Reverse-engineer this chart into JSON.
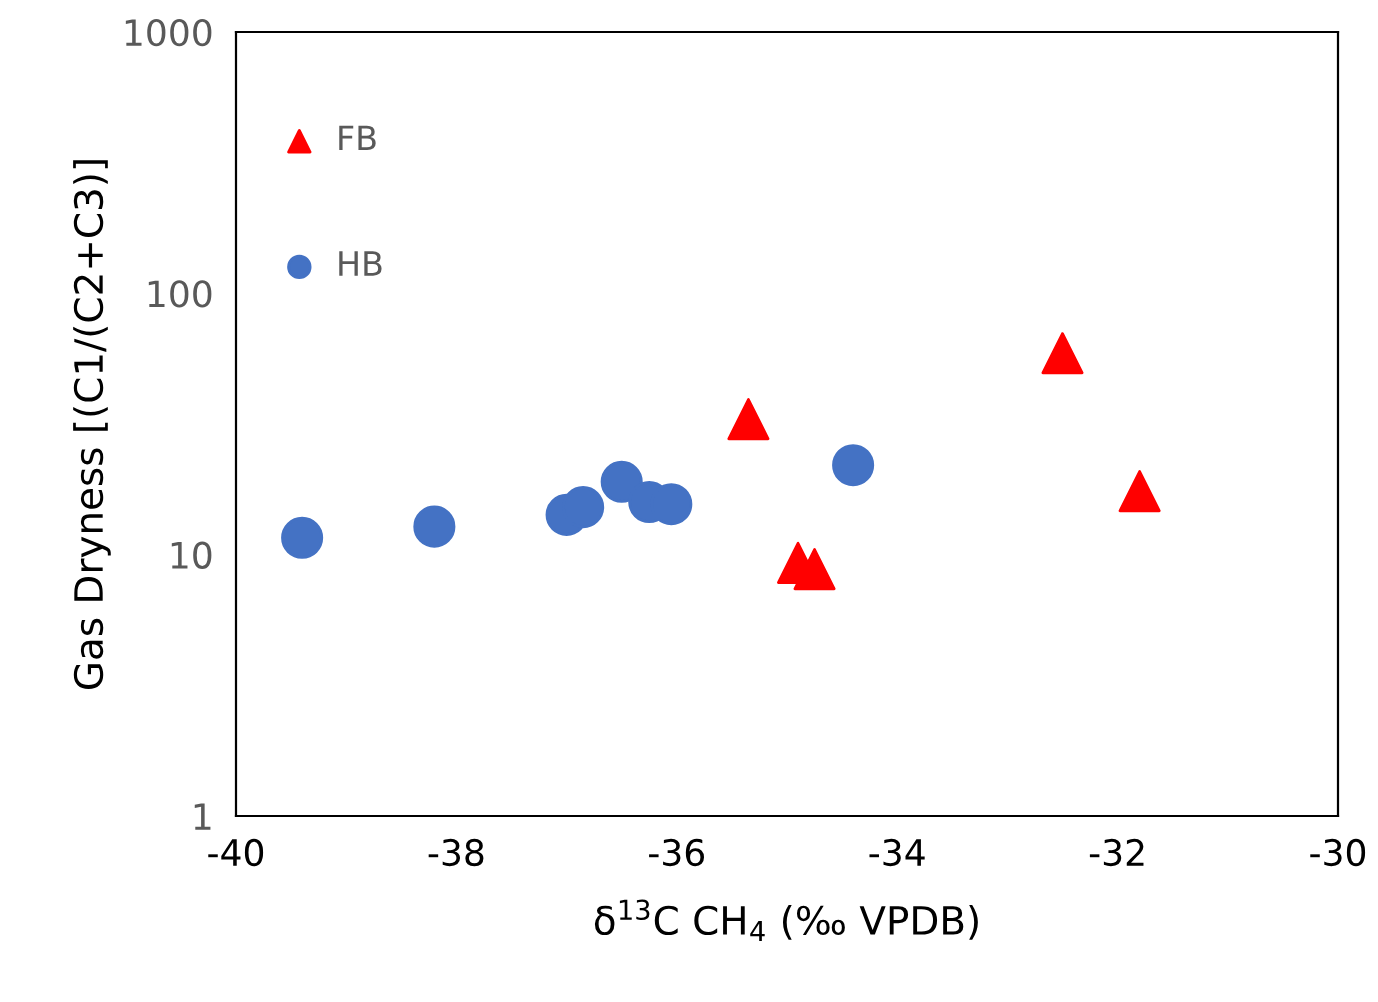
{
  "chart_data": {
    "type": "scatter",
    "xlabel": "δ$^{13}$C CH$_{4}$ (‰ VPDB)",
    "ylabel": "Gas Dryness [(C1/(C2+C3)]",
    "series": [
      {
        "name": "FB",
        "color": "#ff0000",
        "marker": "triangle",
        "x": [
          -35.35,
          -34.9,
          -34.75,
          -32.5,
          -31.8
        ],
        "values": [
          33,
          9.3,
          8.8,
          59,
          17.5
        ]
      },
      {
        "name": "HB",
        "color": "#4472c4",
        "marker": "circle",
        "x": [
          -39.4,
          -38.2,
          -37.0,
          -36.85,
          -36.5,
          -36.25,
          -36.05,
          -34.4
        ],
        "values": [
          11.6,
          12.8,
          14.2,
          15.2,
          19,
          15.9,
          15.6,
          22
        ]
      }
    ],
    "xlim": [
      -40,
      -30
    ],
    "xticks": [
      {
        "value": -40,
        "label": "-40"
      },
      {
        "value": -38,
        "label": "-38"
      },
      {
        "value": -36,
        "label": "-36"
      },
      {
        "value": -34,
        "label": "-34"
      },
      {
        "value": -32,
        "label": "-32"
      },
      {
        "value": -30,
        "label": "-30"
      }
    ],
    "ylim": [
      1,
      1000
    ],
    "yticks": [
      1,
      10,
      100,
      1000
    ],
    "log": true,
    "grid": false,
    "legend": "top left"
  }
}
